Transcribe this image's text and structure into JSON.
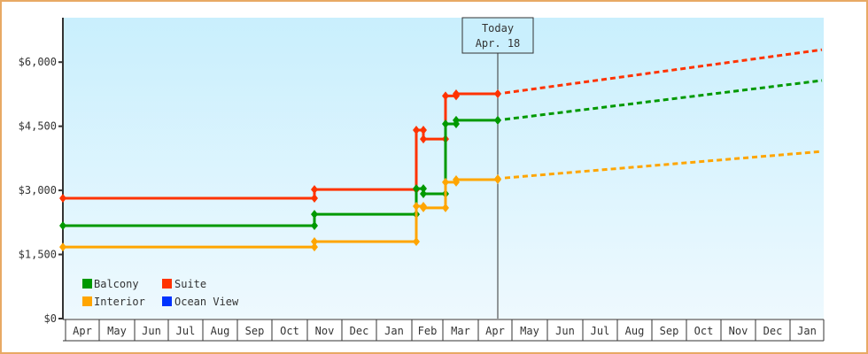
{
  "chart_data": {
    "type": "line",
    "title": "",
    "xlabel": "",
    "ylabel": "",
    "ylim": [
      0,
      6900
    ],
    "y_ticks": [
      {
        "value": 0,
        "label": "$0"
      },
      {
        "value": 1500,
        "label": "$1,500"
      },
      {
        "value": 3000,
        "label": "$3,000"
      },
      {
        "value": 4500,
        "label": "$4,500"
      },
      {
        "value": 6000,
        "label": "$6,000"
      }
    ],
    "x_ticks": [
      "Apr",
      "May",
      "Jun",
      "Jul",
      "Aug",
      "Sep",
      "Oct",
      "Nov",
      "Dec",
      "Jan",
      "Feb",
      "Mar",
      "Apr",
      "May",
      "Jun",
      "Jul",
      "Aug",
      "Sep",
      "Oct",
      "Nov",
      "Dec",
      "Jan"
    ],
    "today_marker": {
      "line1": "Today",
      "line2": "Apr. 18"
    },
    "legend": [
      {
        "name": "Balcony",
        "color": "#009900"
      },
      {
        "name": "Suite",
        "color": "#ff3300"
      },
      {
        "name": "Interior",
        "color": "#ffa500"
      },
      {
        "name": "Ocean View",
        "color": "#0033ff"
      }
    ],
    "series": [
      {
        "name": "Suite",
        "color": "#ff3300",
        "step": true,
        "points": [
          {
            "x": "Apr (start)",
            "y": 2815
          },
          {
            "x": "Nov (early)",
            "y": 3020
          },
          {
            "x": "Feb (early)",
            "y": 4410
          },
          {
            "x": "Feb (mid)",
            "y": 4200
          },
          {
            "x": "Mar (early)",
            "y": 5210
          },
          {
            "x": "Mar (mid)",
            "y": 5260
          },
          {
            "x": "Today Apr 18",
            "y": 5260
          }
        ],
        "projection": [
          {
            "x": "Today Apr 18",
            "y": 5260
          },
          {
            "x": "Jan (end)",
            "y": 6290
          }
        ]
      },
      {
        "name": "Balcony",
        "color": "#009900",
        "step": true,
        "points": [
          {
            "x": "Apr (start)",
            "y": 2175
          },
          {
            "x": "Nov (early)",
            "y": 2440
          },
          {
            "x": "Feb (early)",
            "y": 3040
          },
          {
            "x": "Feb (mid)",
            "y": 2920
          },
          {
            "x": "Mar (early)",
            "y": 4555
          },
          {
            "x": "Mar (mid)",
            "y": 4640
          },
          {
            "x": "Today Apr 18",
            "y": 4640
          }
        ],
        "projection": [
          {
            "x": "Today Apr 18",
            "y": 4640
          },
          {
            "x": "Jan (end)",
            "y": 5570
          }
        ]
      },
      {
        "name": "Interior",
        "color": "#ffa500",
        "step": true,
        "points": [
          {
            "x": "Apr (start)",
            "y": 1675
          },
          {
            "x": "Nov (early)",
            "y": 1800
          },
          {
            "x": "Feb (early)",
            "y": 2630
          },
          {
            "x": "Feb (mid)",
            "y": 2590
          },
          {
            "x": "Mar (early)",
            "y": 3190
          },
          {
            "x": "Mar (mid)",
            "y": 3250
          },
          {
            "x": "Today Apr 18",
            "y": 3270
          }
        ],
        "projection": [
          {
            "x": "Today Apr 18",
            "y": 3270
          },
          {
            "x": "Jan (end)",
            "y": 3910
          }
        ]
      },
      {
        "name": "Ocean View",
        "color": "#0033ff",
        "step": true,
        "points": [],
        "projection": []
      }
    ]
  }
}
